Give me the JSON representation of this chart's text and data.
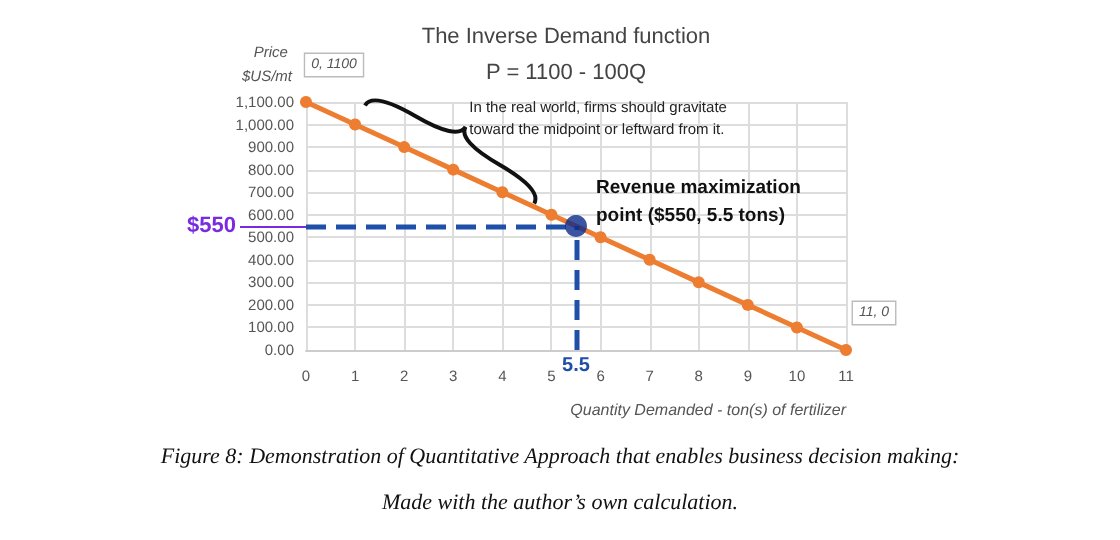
{
  "chart_data": {
    "type": "line",
    "title": "The Inverse Demand function",
    "subtitle": "P = 1100 - 100Q",
    "ylabel": "Price $US/mt",
    "xlabel": "Quantity Demanded - ton(s) of fertilizer",
    "x": [
      0,
      1,
      2,
      3,
      4,
      5,
      6,
      7,
      8,
      9,
      10,
      11
    ],
    "xlim": [
      0,
      11
    ],
    "xticks": [
      0,
      1,
      2,
      3,
      4,
      5,
      6,
      7,
      8,
      9,
      10,
      11
    ],
    "ylim": [
      0,
      1100
    ],
    "yticks": [
      {
        "value": 0,
        "label": "0.00"
      },
      {
        "value": 100,
        "label": "100.00"
      },
      {
        "value": 200,
        "label": "200.00"
      },
      {
        "value": 300,
        "label": "300.00"
      },
      {
        "value": 400,
        "label": "400.00"
      },
      {
        "value": 500,
        "label": "500.00"
      },
      {
        "value": 600,
        "label": "600.00"
      },
      {
        "value": 700,
        "label": "700.00"
      },
      {
        "value": 800,
        "label": "800.00"
      },
      {
        "value": 900,
        "label": "900.00"
      },
      {
        "value": 1000,
        "label": "1,000.00"
      },
      {
        "value": 1100,
        "label": "1,100.00"
      }
    ],
    "series": [
      {
        "type": "line",
        "color": "#ed7d31",
        "marker": "circle",
        "values": [
          1100,
          1000,
          900,
          800,
          700,
          600,
          500,
          400,
          300,
          200,
          100,
          0
        ],
        "value_labels": [
          "0, 1100",
          null,
          null,
          null,
          null,
          null,
          null,
          null,
          null,
          null,
          null,
          "11, 0"
        ]
      },
      {
        "type": "scatter",
        "color": "#0b2a8c",
        "marker": "circle",
        "x": [
          5.5
        ],
        "values": [
          550
        ]
      }
    ],
    "ref_lines": [
      {
        "axis": "y",
        "value": 550,
        "label": "$550",
        "color": "#1f4fa8",
        "line_style": "dashed"
      },
      {
        "axis": "x",
        "value": 5.5,
        "label": "5.5",
        "color": "#1f4fa8",
        "line_style": "dashed"
      }
    ],
    "annotations": [
      {
        "text": "In the real world, firms should gravitate toward the midpoint or leftward from it.",
        "x": 3,
        "y": 800
      },
      {
        "text": "Revenue maximization point ($550, 5.5 tons)",
        "x": 5.5,
        "y": 550
      },
      "Figure 8: Demonstration of Quantitative Approach that enables business decision making:",
      "Made with the author’s own calculation."
    ],
    "grid": true
  }
}
